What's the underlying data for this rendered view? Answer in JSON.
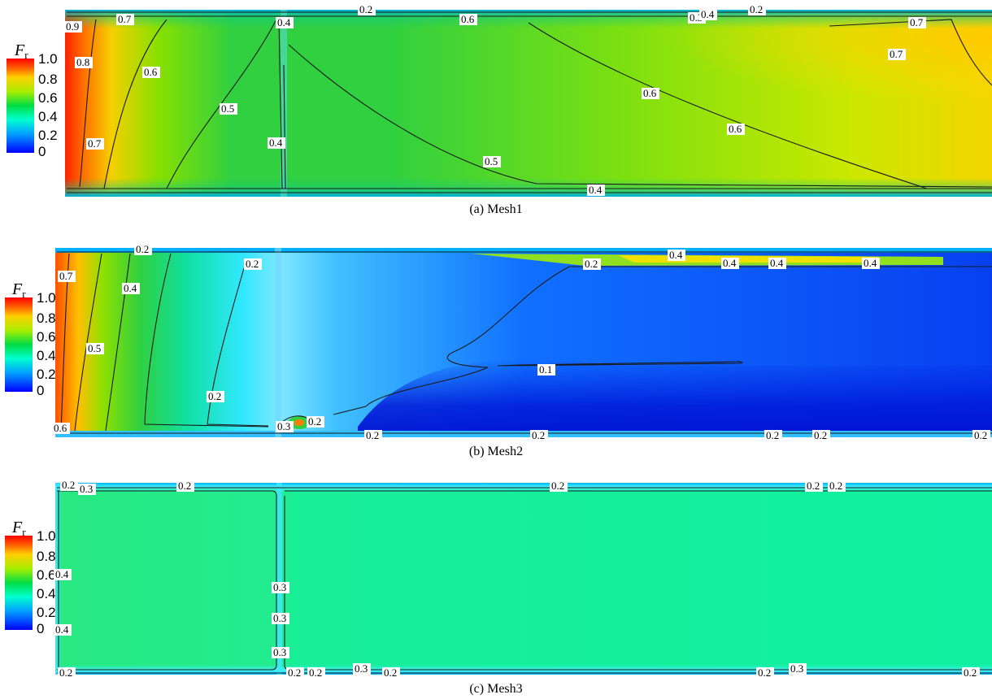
{
  "colorbar": {
    "symbol": "F",
    "subscript": "r",
    "ticks": [
      "1.0",
      "0.8",
      "0.6",
      "0.4",
      "0.2",
      "0"
    ]
  },
  "panels": [
    {
      "caption": "(a)  Mesh1",
      "contour_labels": [
        "0.9",
        "0.8",
        "0.7",
        "0.7",
        "0.6",
        "0.5",
        "0.4",
        "0.4",
        "0.2",
        "0.6",
        "0.3",
        "0.4",
        "0.2",
        "0.7",
        "0.7",
        "0.6",
        "0.6",
        "0.5",
        "0.4"
      ]
    },
    {
      "caption": "(b)  Mesh2",
      "contour_labels": [
        "0.2",
        "0.7",
        "0.4",
        "0.5",
        "0.6",
        "0.2",
        "0.2",
        "0.3",
        "0.2",
        "0.2",
        "0.4",
        "0.4",
        "0.4",
        "0.4",
        "0.2",
        "0.1",
        "0.2",
        "0.2",
        "0.2",
        "0.2"
      ]
    },
    {
      "caption": "(c)  Mesh3",
      "contour_labels": [
        "0.2",
        "0.3",
        "0.2",
        "0.2",
        "0.2",
        "0.2",
        "0.4",
        "0.4",
        "0.3",
        "0.3",
        "0.3",
        "0.2",
        "0.2",
        "0.2",
        "0.3",
        "0.2",
        "0.2",
        "0.3",
        "0.2",
        "0.2"
      ]
    }
  ]
}
